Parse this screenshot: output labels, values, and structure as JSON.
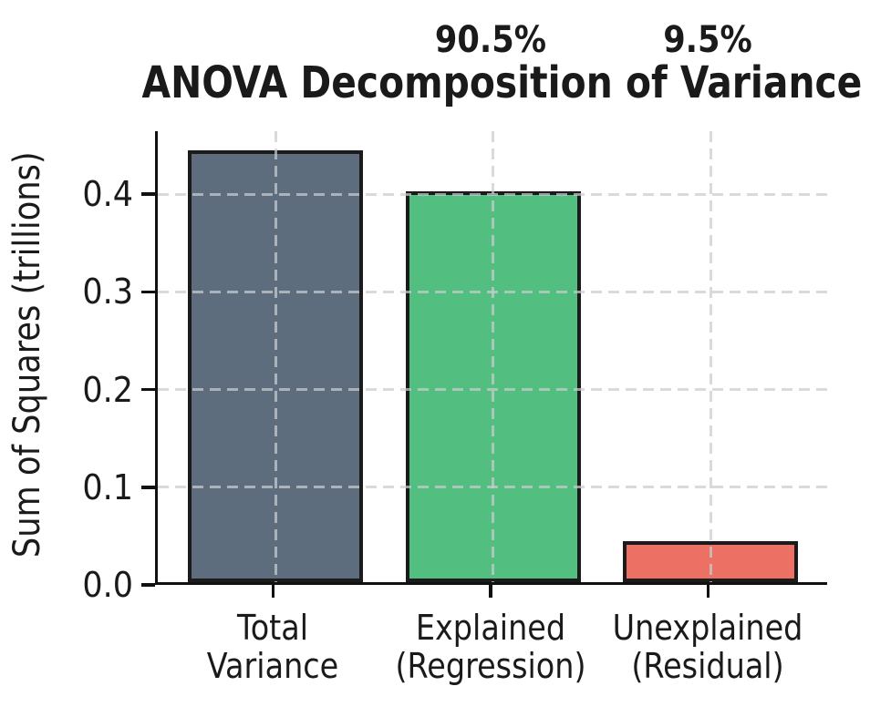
{
  "chart_data": {
    "type": "bar",
    "title": "ANOVA Decomposition of Variance",
    "ylabel": "Sum of Squares (trillions)",
    "xlabel": "",
    "categories": [
      "Total\nVariance",
      "Explained\n(Regression)",
      "Unexplained\n(Residual)"
    ],
    "values": [
      0.442,
      0.4,
      0.042
    ],
    "bar_colors": [
      "#5d6d7e",
      "#52be80",
      "#ec7063"
    ],
    "bar_edge_color": "#1b1b1b",
    "annotations": [
      {
        "category_index": 1,
        "text": "90.5%"
      },
      {
        "category_index": 2,
        "text": "9.5%"
      }
    ],
    "yticks": [
      0.0,
      0.1,
      0.2,
      0.3,
      0.4
    ],
    "ytick_labels": [
      "0.0",
      "0.1",
      "0.2",
      "0.3",
      "0.4"
    ],
    "ylim": [
      0,
      0.4644
    ],
    "grid": true,
    "grid_style": "dashed",
    "legend": "none",
    "background_color": "#ffffff",
    "text_color": "#1a1a1a"
  }
}
